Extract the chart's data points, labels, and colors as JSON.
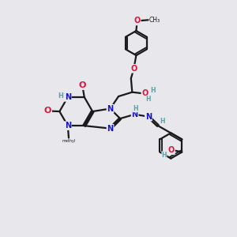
{
  "bg": "#e8e8ec",
  "bc": "#1a1a1a",
  "nc": "#1414c8",
  "oc": "#dc143c",
  "hc": "#5f9ea0",
  "lw": 1.6,
  "fs": 7.0,
  "xlim": [
    0,
    10
  ],
  "ylim": [
    0,
    10
  ]
}
